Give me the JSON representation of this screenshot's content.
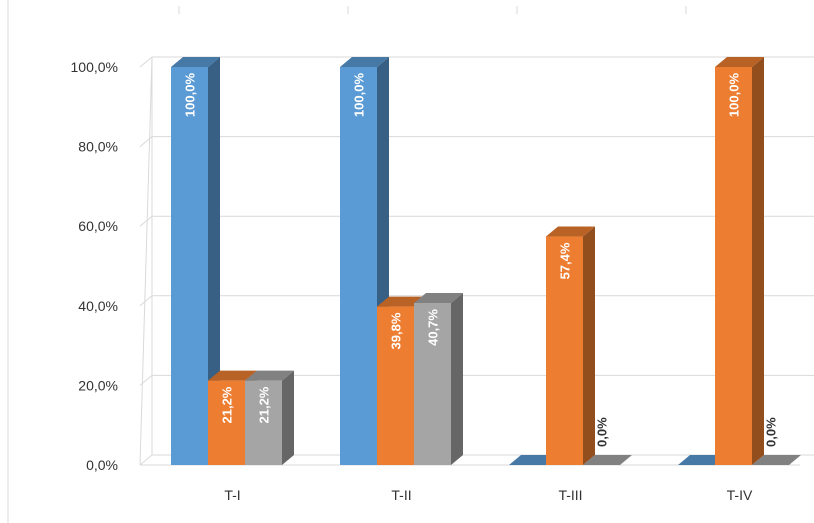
{
  "chart_data": {
    "type": "bar",
    "categories": [
      "T-I",
      "T-II",
      "T-III",
      "T-IV"
    ],
    "series": [
      {
        "values": [
          100.0,
          100.0,
          0.0,
          0.0
        ],
        "labels": [
          "100,0%",
          "100,0%",
          "",
          ""
        ],
        "color": "#5b9bd5"
      },
      {
        "values": [
          21.2,
          39.8,
          57.4,
          100.0
        ],
        "labels": [
          "21,2%",
          "39,8%",
          "57,4%",
          "100,0%"
        ],
        "color": "#ed7d31"
      },
      {
        "values": [
          21.2,
          40.7,
          0.0,
          0.0
        ],
        "labels": [
          "21,2%",
          "40,7%",
          "0,0%",
          "0,0%"
        ],
        "color": "#a5a5a5"
      }
    ],
    "ylim": [
      0,
      100
    ],
    "yticks": [
      0,
      20,
      40,
      60,
      80,
      100
    ],
    "ytick_labels": [
      "0,0%",
      "20,0%",
      "40,0%",
      "60,0%",
      "80,0%",
      "100,0%"
    ],
    "grid": true,
    "style": "3d-column"
  }
}
